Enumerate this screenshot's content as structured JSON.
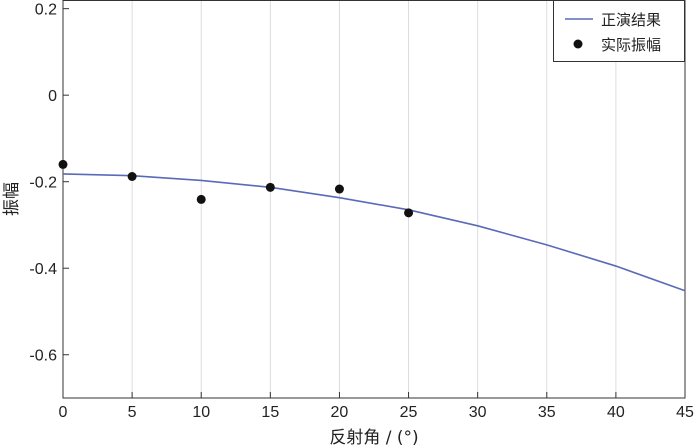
{
  "chart_data": {
    "type": "scatter",
    "xlabel": "反射角 / (°)",
    "ylabel": "振幅",
    "xlim": [
      0,
      45
    ],
    "ylim": [
      -0.7,
      0.22
    ],
    "x_ticks": [
      "0",
      "5",
      "10",
      "15",
      "20",
      "25",
      "30",
      "35",
      "40",
      "45"
    ],
    "y_ticks": [
      "0.2",
      "0",
      "-0.2",
      "-0.4",
      "-0.6"
    ],
    "grid": "vertical",
    "legend_position": "top-right",
    "series": [
      {
        "name": "正演结果",
        "kind": "line",
        "color": "#5a6ab8",
        "x": [
          0,
          5,
          10,
          15,
          20,
          25,
          30,
          35,
          40,
          45
        ],
        "y": [
          -0.182,
          -0.186,
          -0.197,
          -0.213,
          -0.237,
          -0.265,
          -0.302,
          -0.346,
          -0.395,
          -0.452
        ]
      },
      {
        "name": "实际振幅",
        "kind": "scatter",
        "color": "#111111",
        "x": [
          0,
          5,
          10,
          15,
          20,
          25
        ],
        "y": [
          -0.16,
          -0.188,
          -0.241,
          -0.213,
          -0.217,
          -0.272
        ]
      }
    ]
  }
}
